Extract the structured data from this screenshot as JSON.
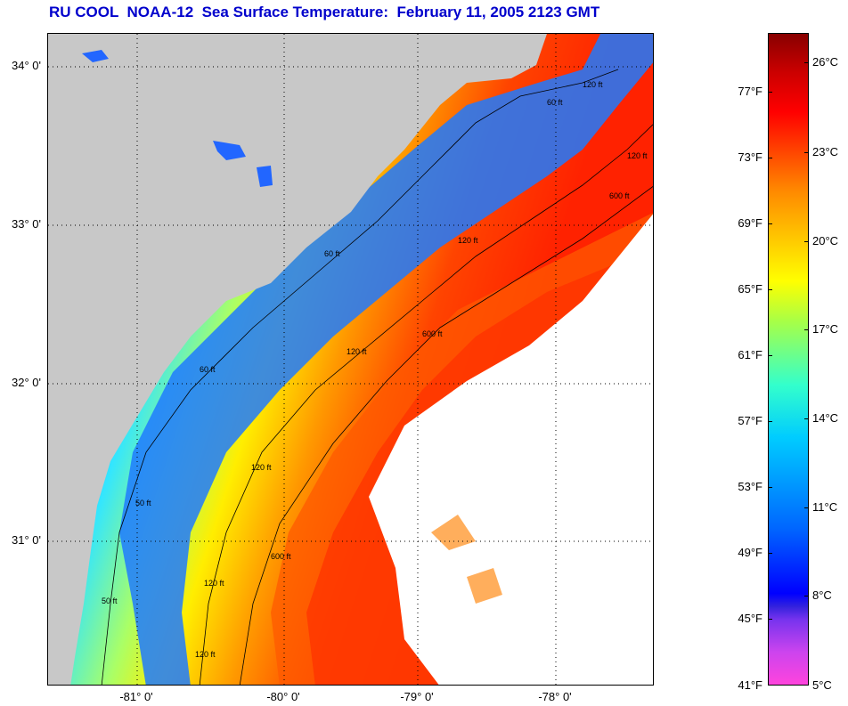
{
  "title": "RU COOL  NOAA-12  Sea Surface Temperature:  February 11, 2005 2123 GMT",
  "map": {
    "latitude_labels": [
      "34° 0'",
      "33° 0'",
      "32° 0'",
      "31° 0'"
    ],
    "longitude_labels": [
      "-81° 0'",
      "-80° 0'",
      "-79° 0'",
      "-78° 0'"
    ],
    "isobath_labels": [
      "50 ft",
      "60 ft",
      "120 ft",
      "600 ft",
      "120 ft",
      "60 ft",
      "120 ft",
      "600 ft",
      "120 ft",
      "50 ft",
      "60 ft",
      "120 ft",
      "120 ft",
      "120 ft",
      "600 ft"
    ],
    "colors": {
      "land": "#c8c8c8",
      "cloud": "#ffffff",
      "grid": "#000000"
    }
  },
  "colorbar": {
    "fahrenheit_labels": [
      "77°F",
      "73°F",
      "69°F",
      "65°F",
      "61°F",
      "57°F",
      "53°F",
      "49°F",
      "45°F",
      "41°F"
    ],
    "celsius_labels": [
      "26°C",
      "23°C",
      "20°C",
      "17°C",
      "14°C",
      "11°C",
      "8°C",
      "5°C"
    ],
    "range_f": [
      41,
      81
    ],
    "range_c": [
      5,
      27
    ]
  }
}
